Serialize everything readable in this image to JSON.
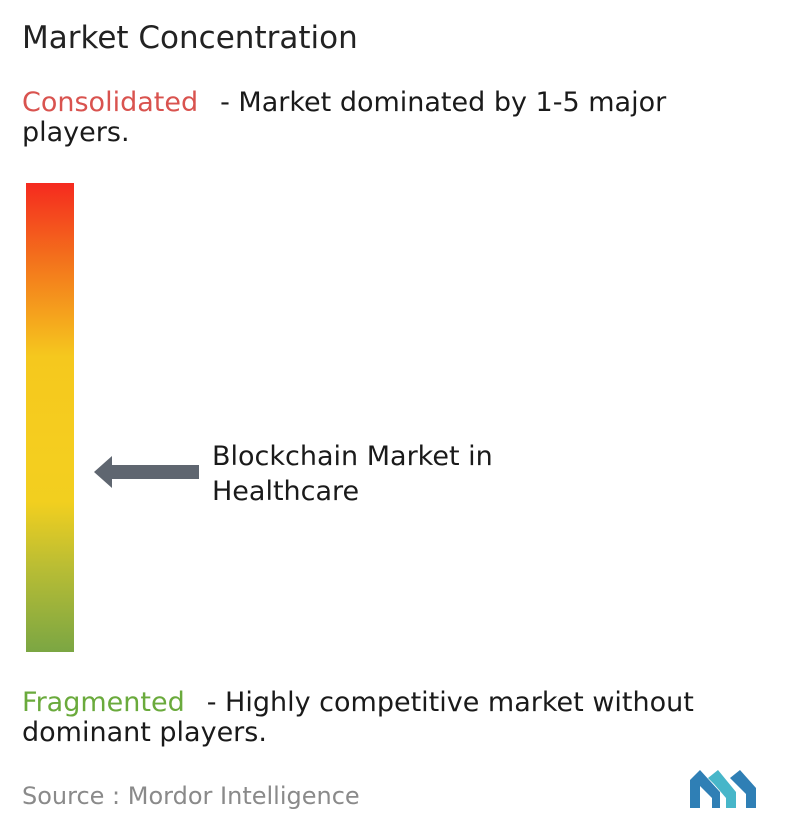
{
  "chart_data": {
    "type": "gauge",
    "title": "Market Concentration",
    "scale": {
      "top": {
        "term": "Consolidated",
        "description": "- Market dominated by 1-5 major players.",
        "color": "#d9534f"
      },
      "bottom": {
        "term": "Fragmented",
        "description": "- Highly competitive market without dominant players.",
        "color": "#6aaa3c"
      },
      "gradient_colors": [
        "#f52a1f",
        "#f3701c",
        "#f5c81e",
        "#f2cf1f",
        "#b9bd34",
        "#7ba643"
      ]
    },
    "marker": {
      "label": "Blockchain Market in Healthcare",
      "level_from_bottom": 0.38,
      "color": "#5f6670"
    },
    "source": "Source :  Mordor Intelligence"
  },
  "logo": {
    "name": "mordor-intelligence-logo",
    "colors": [
      "#2f7fb5",
      "#47b6c9"
    ]
  }
}
